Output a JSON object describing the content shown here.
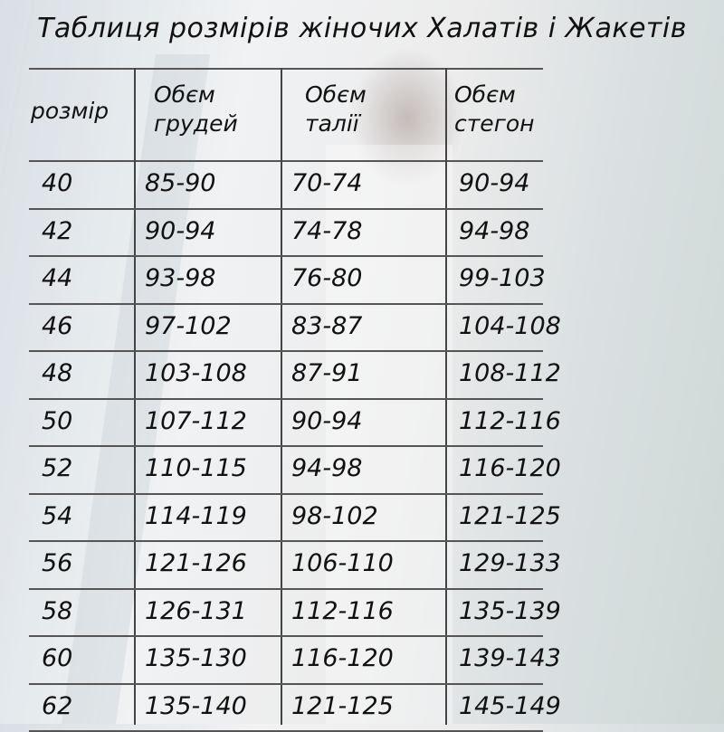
{
  "title": "Таблиця розмірів жіночих Халатів і Жакетів",
  "headers": [
    {
      "line1": "розмір",
      "line2": ""
    },
    {
      "line1": "Обєм",
      "line2": "грудей"
    },
    {
      "line1": "Обєм",
      "line2": "талії"
    },
    {
      "line1": "Обєм",
      "line2": "стегон"
    }
  ],
  "rows": [
    [
      "40",
      "85-90",
      "70-74",
      "90-94"
    ],
    [
      "42",
      "90-94",
      "74-78",
      "94-98"
    ],
    [
      "44",
      "93-98",
      "76-80",
      "99-103"
    ],
    [
      "46",
      "97-102",
      "83-87",
      "104-108"
    ],
    [
      "48",
      "103-108",
      "87-91",
      "108-112"
    ],
    [
      "50",
      "107-112",
      "90-94",
      "112-116"
    ],
    [
      "52",
      "110-115",
      "94-98",
      "116-120"
    ],
    [
      "54",
      "114-119",
      "98-102",
      "121-125"
    ],
    [
      "56",
      "121-126",
      "106-110",
      "129-133"
    ],
    [
      "58",
      "126-131",
      "112-116",
      "135-139"
    ],
    [
      "60",
      "135-130",
      "116-120",
      "139-143"
    ],
    [
      "62",
      "135-140",
      "121-125",
      "145-149"
    ]
  ]
}
